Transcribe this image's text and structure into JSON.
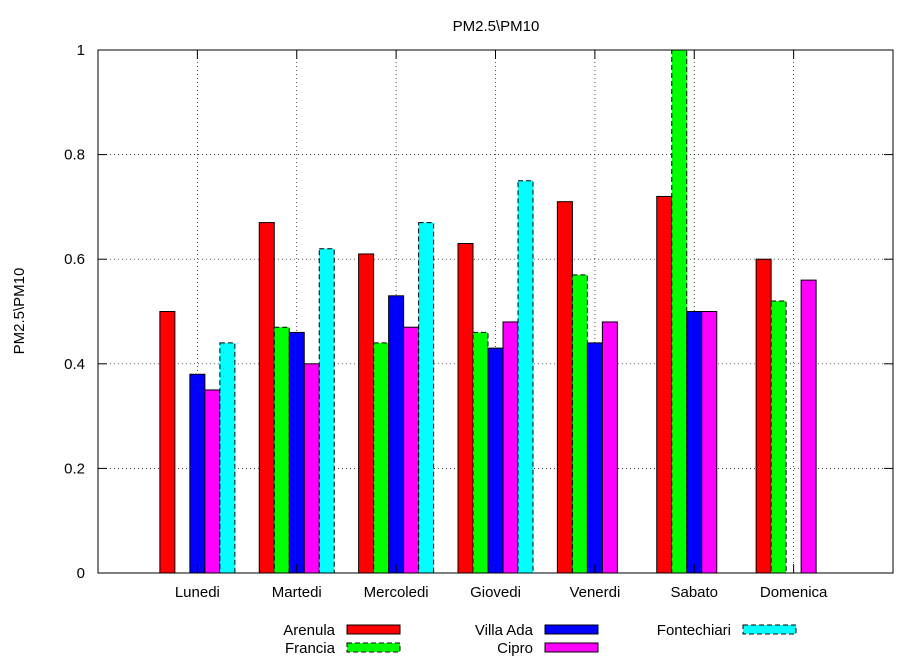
{
  "chart_data": {
    "type": "bar",
    "title": "PM2.5\\PM10",
    "xlabel": "",
    "ylabel": "PM2.5\\PM10",
    "ylim": [
      0,
      1
    ],
    "yticks": [
      "0",
      "0.2",
      "0.4",
      "0.6",
      "0.8",
      "1"
    ],
    "ytick_values": [
      0,
      0.2,
      0.4,
      0.6,
      0.8,
      1
    ],
    "grid": true,
    "legend_position": "bottom",
    "categories": [
      "Lunedi",
      "Martedi",
      "Mercoledi",
      "Giovedi",
      "Venerdi",
      "Sabato",
      "Domenica"
    ],
    "series": [
      {
        "name": "Arenula",
        "color": "#ff0000",
        "dashed": false,
        "values": [
          0.5,
          0.67,
          0.61,
          0.63,
          0.71,
          0.72,
          0.6
        ]
      },
      {
        "name": "Francia",
        "color": "#00ff00",
        "dashed": true,
        "values": [
          null,
          0.47,
          0.44,
          0.46,
          0.57,
          1.0,
          0.52
        ]
      },
      {
        "name": "Villa Ada",
        "color": "#0000ff",
        "dashed": false,
        "values": [
          0.38,
          0.46,
          0.53,
          0.43,
          0.44,
          0.5,
          null
        ]
      },
      {
        "name": "Cipro",
        "color": "#ff00ff",
        "dashed": false,
        "values": [
          0.35,
          0.4,
          0.47,
          0.48,
          0.48,
          0.5,
          0.56
        ]
      },
      {
        "name": "Fontechiari",
        "color": "#00ffff",
        "dashed": true,
        "values": [
          0.44,
          0.62,
          0.67,
          0.75,
          null,
          null,
          null
        ]
      }
    ]
  }
}
